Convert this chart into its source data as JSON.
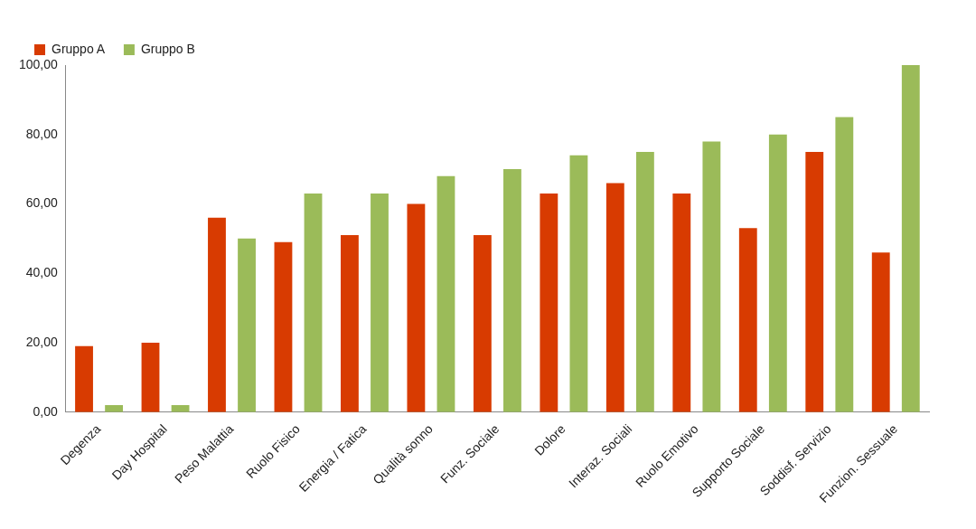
{
  "chart_data": {
    "type": "bar",
    "categories": [
      "Degenza",
      "Day Hospital",
      "Peso Malattia",
      "Ruolo Fisico",
      "Energia / Fatica",
      "Qualità sonno",
      "Funz. Sociale",
      "Dolore",
      "Interaz. Sociali",
      "Ruolo Emotivo",
      "Supporto Sociale",
      "Soddisf. Servizio",
      "Funzion. Sessuale"
    ],
    "series": [
      {
        "name": "Gruppo A",
        "color": "#d83b01",
        "values": [
          19,
          20,
          56,
          49,
          51,
          60,
          51,
          63,
          66,
          63,
          53,
          75,
          46
        ]
      },
      {
        "name": "Gruppo B",
        "color": "#9bbb59",
        "values": [
          2,
          2,
          50,
          63,
          63,
          68,
          70,
          74,
          75,
          78,
          80,
          85,
          100
        ]
      }
    ],
    "ylim": [
      0,
      100
    ],
    "yticks": [
      {
        "value": 0,
        "label": "0,00"
      },
      {
        "value": 20,
        "label": "20,00"
      },
      {
        "value": 40,
        "label": "40,00"
      },
      {
        "value": 60,
        "label": "60,00"
      },
      {
        "value": 80,
        "label": "80,00"
      },
      {
        "value": 100,
        "label": "100,00"
      }
    ],
    "grid": false,
    "legend": "top left"
  }
}
